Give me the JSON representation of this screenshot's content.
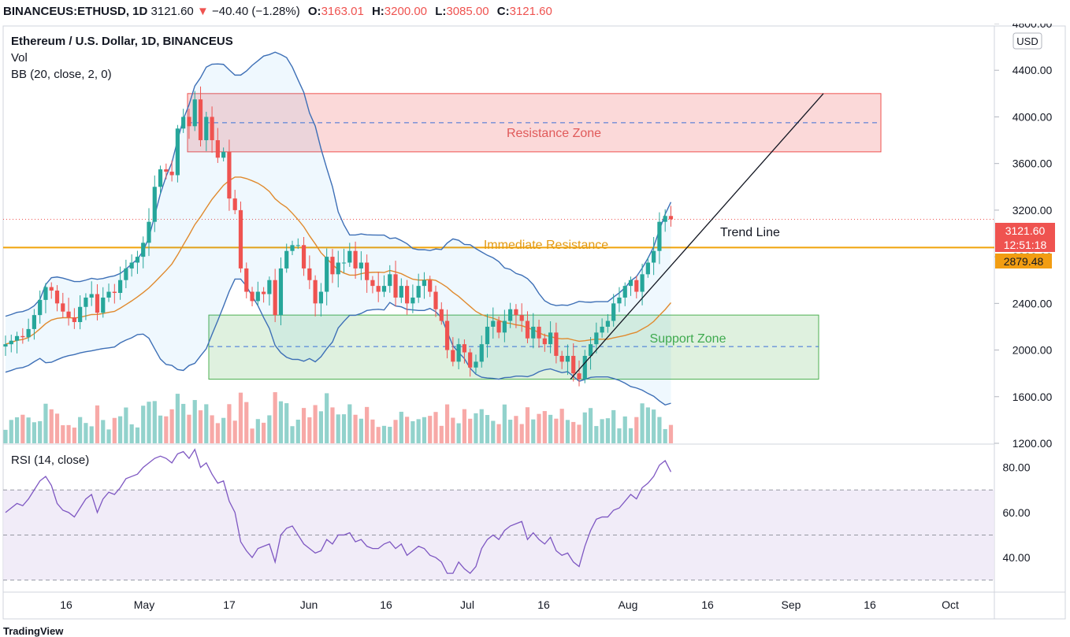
{
  "header": {
    "symbol": "BINANCEUS:ETHUSD, 1D",
    "last": "3121.60",
    "arrow": "▼",
    "change": "−40.40 (−1.28%)",
    "o_label": "O:",
    "o_value": "3163.01",
    "h_label": "H:",
    "h_value": "3200.00",
    "l_label": "L:",
    "l_value": "3085.00",
    "c_label": "C:",
    "c_value": "3121.60"
  },
  "legend": {
    "title": "Ethereum / U.S. Dollar, 1D, BINANCEUS",
    "vol": "Vol",
    "bb": "BB (20, close, 2, 0)",
    "rsi": "RSI (14, close)"
  },
  "currency_badge": "USD",
  "price_labels": {
    "last_price": "3121.60",
    "countdown": "12:51:18",
    "resistance_level": "2879.48"
  },
  "annotations": {
    "resistance_zone": "Resistance Zone",
    "immediate_resistance": "Immediate Resistance",
    "support_zone": "Support Zone",
    "trend_line": "Trend Line"
  },
  "colors": {
    "up": "#26a69a",
    "down": "#ef5350",
    "bb_band": "#3d6fb6",
    "bb_basis": "#e08a2e",
    "resistance_zone": "#ef5350",
    "support_zone": "#4caf50",
    "immediate_resistance": "#f0a30a",
    "rsi_line": "#7e57c2",
    "rsi_band": "#ede7f6"
  },
  "watermark": "TradingView",
  "chart_data": {
    "type": "candlestick",
    "x_axis_ticks": [
      "16",
      "May",
      "17",
      "Jun",
      "16",
      "Jul",
      "16",
      "Aug",
      "16",
      "Sep",
      "16",
      "Oct"
    ],
    "price_axis": {
      "range": [
        1200,
        4800
      ],
      "ticks": [
        "1200.00",
        "1600.00",
        "2000.00",
        "2400.00",
        "2800.00",
        "3200.00",
        "3600.00",
        "4000.00",
        "4400.00",
        "4800.00"
      ]
    },
    "rsi_axis": {
      "range": [
        25,
        90
      ],
      "ticks": [
        "40.00",
        "60.00",
        "80.00"
      ],
      "band": [
        30,
        70
      ],
      "mid": 50
    },
    "zones": {
      "resistance": {
        "from": 3700,
        "to": 4200,
        "mid": 3950
      },
      "support": {
        "from": 1750,
        "to": 2300,
        "mid": 2030
      },
      "immediate_resistance": 2879.48
    },
    "trend_line": {
      "from": {
        "date": "Jul 20",
        "price": 1750
      },
      "to": {
        "date": "Sep 6",
        "price": 4200
      }
    },
    "approx_close": [
      2050,
      2080,
      2120,
      2110,
      2180,
      2300,
      2430,
      2540,
      2510,
      2400,
      2330,
      2280,
      2240,
      2370,
      2450,
      2480,
      2320,
      2450,
      2500,
      2490,
      2600,
      2700,
      2750,
      2800,
      2920,
      3100,
      3400,
      3550,
      3530,
      3500,
      3900,
      4000,
      3920,
      4150,
      3800,
      4000,
      3800,
      3650,
      3700,
      3300,
      3200,
      2700,
      2500,
      2420,
      2500,
      2480,
      2600,
      2300,
      2700,
      2850,
      2900,
      2900,
      2700,
      2600,
      2400,
      2500,
      2800,
      2650,
      2750,
      2750,
      2850,
      2700,
      2750,
      2600,
      2550,
      2500,
      2550,
      2650,
      2450,
      2550,
      2400,
      2450,
      2550,
      2600,
      2500,
      2350,
      2250,
      2000,
      1900,
      2050,
      1980,
      1850,
      1900,
      2050,
      2200,
      2250,
      2150,
      2250,
      2350,
      2300,
      2250,
      2100,
      2200,
      2100,
      2050,
      2150,
      1950,
      1900,
      1950,
      1800,
      1750,
      1950,
      2050,
      2150,
      2200,
      2250,
      2400,
      2450,
      2550,
      2600,
      2500,
      2650,
      2750,
      2850,
      3100,
      3150,
      3121.6
    ],
    "approx_rsi": [
      60,
      62,
      64,
      63,
      66,
      70,
      74,
      76,
      72,
      64,
      61,
      60,
      58,
      62,
      66,
      68,
      60,
      66,
      69,
      68,
      71,
      75,
      76,
      77,
      80,
      82,
      84,
      85,
      84,
      82,
      86,
      87,
      84,
      88,
      80,
      82,
      77,
      73,
      74,
      65,
      60,
      47,
      43,
      40,
      44,
      45,
      46,
      38,
      50,
      53,
      54,
      50,
      46,
      44,
      42,
      43,
      48,
      46,
      50,
      50,
      51,
      47,
      48,
      45,
      44,
      44,
      46,
      47,
      44,
      46,
      41,
      43,
      45,
      44,
      41,
      40,
      38,
      33,
      33,
      38,
      35,
      33,
      36,
      44,
      48,
      50,
      48,
      52,
      54,
      55,
      56,
      48,
      51,
      48,
      46,
      49,
      43,
      41,
      42,
      38,
      36,
      45,
      52,
      57,
      58,
      58,
      61,
      62,
      65,
      68,
      66,
      71,
      73,
      76,
      81,
      83,
      78
    ]
  }
}
